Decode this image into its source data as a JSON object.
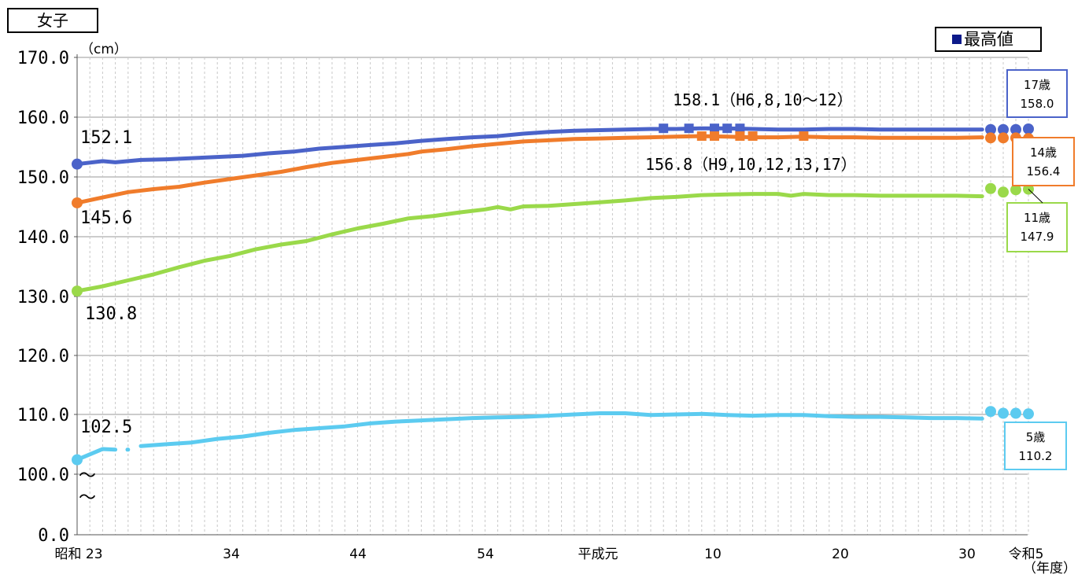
{
  "title": "女子",
  "unit_label": "（cm）",
  "year_label": "（年度）",
  "legend": {
    "max_label": "最高値",
    "marker_color": "#0d1a8a"
  },
  "colors": {
    "age17": "#4b63c9",
    "age14": "#f07c2b",
    "age11": "#9ad94a",
    "age5": "#5ccbf0",
    "grid": "#999999"
  },
  "chart_data": {
    "type": "line",
    "ylabel": "（cm）",
    "xlabel": "（年度）",
    "yticks": [
      "170.0",
      "160.0",
      "150.0",
      "140.0",
      "130.0",
      "120.0",
      "110.0",
      "100.0",
      "0.0"
    ],
    "y_axis_break": "〜",
    "xticks": [
      "昭和 23",
      "34",
      "44",
      "54",
      "平成元",
      "10",
      "20",
      "30",
      "令和5"
    ],
    "series": [
      {
        "name": "17歳",
        "line": [
          [
            1948,
            152.1
          ],
          [
            1950,
            152.6
          ],
          [
            1951,
            152.4
          ],
          [
            1953,
            152.8
          ],
          [
            1955,
            152.9
          ],
          [
            1957,
            153.1
          ],
          [
            1959,
            153.3
          ],
          [
            1961,
            153.5
          ],
          [
            1963,
            153.9
          ],
          [
            1965,
            154.2
          ],
          [
            1967,
            154.7
          ],
          [
            1969,
            155.0
          ],
          [
            1971,
            155.3
          ],
          [
            1973,
            155.6
          ],
          [
            1975,
            156.0
          ],
          [
            1977,
            156.3
          ],
          [
            1979,
            156.6
          ],
          [
            1981,
            156.8
          ],
          [
            1983,
            157.2
          ],
          [
            1985,
            157.5
          ],
          [
            1987,
            157.7
          ],
          [
            1989,
            157.8
          ],
          [
            1991,
            157.9
          ],
          [
            1993,
            158.0
          ],
          [
            1995,
            158.0
          ],
          [
            1997,
            158.1
          ],
          [
            1999,
            158.1
          ],
          [
            2001,
            158.0
          ],
          [
            2003,
            157.9
          ],
          [
            2005,
            157.9
          ],
          [
            2007,
            158.0
          ],
          [
            2009,
            158.0
          ],
          [
            2011,
            157.9
          ],
          [
            2013,
            157.9
          ],
          [
            2015,
            157.9
          ],
          [
            2017,
            157.9
          ],
          [
            2019,
            157.9
          ]
        ],
        "recent": [
          [
            2020,
            157.9
          ],
          [
            2021,
            157.9
          ],
          [
            2022,
            157.9
          ],
          [
            2023,
            158.0
          ]
        ],
        "max_markers": [
          1994,
          1996,
          1998,
          1999,
          2000
        ],
        "start_label": "152.1",
        "max_label": "158.1（H6,8,10〜12）",
        "box_label": "17歳",
        "box_value": "158.0"
      },
      {
        "name": "14歳",
        "line": [
          [
            1948,
            145.6
          ],
          [
            1950,
            146.5
          ],
          [
            1952,
            147.4
          ],
          [
            1954,
            147.9
          ],
          [
            1956,
            148.3
          ],
          [
            1958,
            149.0
          ],
          [
            1960,
            149.6
          ],
          [
            1962,
            150.2
          ],
          [
            1964,
            150.8
          ],
          [
            1966,
            151.6
          ],
          [
            1968,
            152.3
          ],
          [
            1970,
            152.8
          ],
          [
            1972,
            153.3
          ],
          [
            1974,
            153.8
          ],
          [
            1975,
            154.2
          ],
          [
            1977,
            154.6
          ],
          [
            1979,
            155.1
          ],
          [
            1981,
            155.5
          ],
          [
            1983,
            155.9
          ],
          [
            1985,
            156.1
          ],
          [
            1987,
            156.3
          ],
          [
            1989,
            156.4
          ],
          [
            1991,
            156.5
          ],
          [
            1993,
            156.6
          ],
          [
            1995,
            156.7
          ],
          [
            1997,
            156.8
          ],
          [
            1999,
            156.7
          ],
          [
            2001,
            156.6
          ],
          [
            2003,
            156.6
          ],
          [
            2005,
            156.7
          ],
          [
            2007,
            156.6
          ],
          [
            2009,
            156.6
          ],
          [
            2011,
            156.5
          ],
          [
            2013,
            156.5
          ],
          [
            2015,
            156.5
          ],
          [
            2017,
            156.5
          ],
          [
            2019,
            156.6
          ]
        ],
        "recent": [
          [
            2020,
            156.5
          ],
          [
            2021,
            156.5
          ],
          [
            2022,
            156.5
          ],
          [
            2023,
            156.4
          ]
        ],
        "max_markers": [
          1997,
          1998,
          2000,
          2001,
          2005
        ],
        "start_label": "145.6",
        "max_label": "156.8（H9,10,12,13,17）",
        "box_label": "14歳",
        "box_value": "156.4"
      },
      {
        "name": "11歳",
        "line": [
          [
            1948,
            130.8
          ],
          [
            1950,
            131.6
          ],
          [
            1952,
            132.6
          ],
          [
            1954,
            133.6
          ],
          [
            1956,
            134.8
          ],
          [
            1958,
            135.9
          ],
          [
            1960,
            136.7
          ],
          [
            1962,
            137.8
          ],
          [
            1964,
            138.6
          ],
          [
            1966,
            139.2
          ],
          [
            1968,
            140.3
          ],
          [
            1970,
            141.3
          ],
          [
            1972,
            142.1
          ],
          [
            1974,
            143.0
          ],
          [
            1976,
            143.4
          ],
          [
            1978,
            144.0
          ],
          [
            1980,
            144.5
          ],
          [
            1981,
            144.9
          ],
          [
            1982,
            144.5
          ],
          [
            1983,
            145.0
          ],
          [
            1985,
            145.1
          ],
          [
            1987,
            145.4
          ],
          [
            1989,
            145.7
          ],
          [
            1991,
            146.0
          ],
          [
            1993,
            146.4
          ],
          [
            1995,
            146.6
          ],
          [
            1997,
            146.9
          ],
          [
            1999,
            147.0
          ],
          [
            2001,
            147.1
          ],
          [
            2003,
            147.1
          ],
          [
            2004,
            146.8
          ],
          [
            2005,
            147.1
          ],
          [
            2007,
            146.9
          ],
          [
            2009,
            146.9
          ],
          [
            2011,
            146.8
          ],
          [
            2013,
            146.8
          ],
          [
            2015,
            146.8
          ],
          [
            2017,
            146.8
          ],
          [
            2019,
            146.7
          ]
        ],
        "recent": [
          [
            2020,
            148.0
          ],
          [
            2021,
            147.4
          ],
          [
            2022,
            147.8
          ],
          [
            2023,
            147.9
          ]
        ],
        "start_label": "130.8",
        "box_label": "11歳",
        "box_value": "147.9"
      },
      {
        "name": "5歳",
        "line_segments": [
          [
            [
              1948,
              102.5
            ],
            [
              1950,
              104.3
            ],
            [
              1951,
              104.2
            ]
          ],
          [
            [
              1952,
              104.2
            ]
          ],
          [
            [
              1953,
              104.8
            ],
            [
              1955,
              105.1
            ],
            [
              1957,
              105.4
            ],
            [
              1959,
              106.0
            ],
            [
              1961,
              106.4
            ],
            [
              1963,
              107.0
            ],
            [
              1965,
              107.5
            ],
            [
              1967,
              107.8
            ],
            [
              1969,
              108.1
            ],
            [
              1971,
              108.6
            ],
            [
              1973,
              108.9
            ],
            [
              1975,
              109.1
            ],
            [
              1977,
              109.3
            ],
            [
              1979,
              109.5
            ],
            [
              1981,
              109.6
            ],
            [
              1983,
              109.7
            ],
            [
              1985,
              109.9
            ],
            [
              1987,
              110.1
            ],
            [
              1989,
              110.3
            ],
            [
              1991,
              110.3
            ],
            [
              1993,
              110.0
            ],
            [
              1995,
              110.1
            ],
            [
              1997,
              110.2
            ],
            [
              1999,
              110.0
            ],
            [
              2001,
              109.9
            ],
            [
              2003,
              110.0
            ],
            [
              2005,
              110.0
            ],
            [
              2007,
              109.8
            ],
            [
              2009,
              109.7
            ],
            [
              2011,
              109.7
            ],
            [
              2013,
              109.6
            ],
            [
              2015,
              109.5
            ],
            [
              2017,
              109.5
            ],
            [
              2019,
              109.4
            ]
          ]
        ],
        "recent": [
          [
            2020,
            110.6
          ],
          [
            2021,
            110.3
          ],
          [
            2022,
            110.3
          ],
          [
            2023,
            110.2
          ]
        ],
        "start_label": "102.5",
        "box_label": "5歳",
        "box_value": "110.2"
      }
    ]
  }
}
